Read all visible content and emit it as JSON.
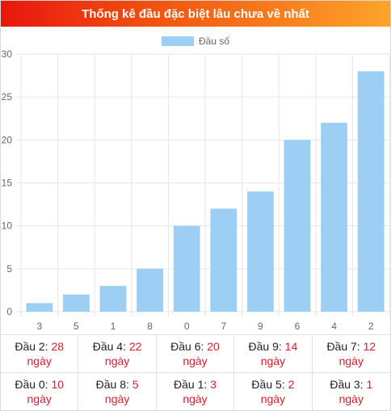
{
  "header": {
    "title": "Thống kê đầu đặc biệt lâu chưa về nhất"
  },
  "colors": {
    "bar": "#9ccff3",
    "highlight": "#e0192b"
  },
  "chart_data": {
    "type": "bar",
    "categories": [
      "3",
      "5",
      "1",
      "8",
      "0",
      "7",
      "9",
      "6",
      "4",
      "2"
    ],
    "series": [
      {
        "name": "Đầu số",
        "values": [
          1,
          2,
          3,
          5,
          10,
          12,
          14,
          20,
          22,
          28
        ]
      }
    ],
    "ylim": [
      0,
      30
    ],
    "yticks": [
      0,
      5,
      10,
      15,
      20,
      25,
      30
    ],
    "grid": true,
    "legend": "top-center"
  },
  "stats": [
    {
      "label": "Đầu 2:",
      "value": "28",
      "unit": "ngày"
    },
    {
      "label": "Đầu 4:",
      "value": "22",
      "unit": "ngày"
    },
    {
      "label": "Đầu 6:",
      "value": "20",
      "unit": "ngày"
    },
    {
      "label": "Đầu 9:",
      "value": "14",
      "unit": "ngày"
    },
    {
      "label": "Đầu 7:",
      "value": "12",
      "unit": "ngày"
    },
    {
      "label": "Đầu 0:",
      "value": "10",
      "unit": "ngày"
    },
    {
      "label": "Đầu 8:",
      "value": "5",
      "unit": "ngày"
    },
    {
      "label": "Đầu 1:",
      "value": "3",
      "unit": "ngày"
    },
    {
      "label": "Đầu 5:",
      "value": "2",
      "unit": "ngày"
    },
    {
      "label": "Đầu 3:",
      "value": "1",
      "unit": "ngày"
    }
  ]
}
